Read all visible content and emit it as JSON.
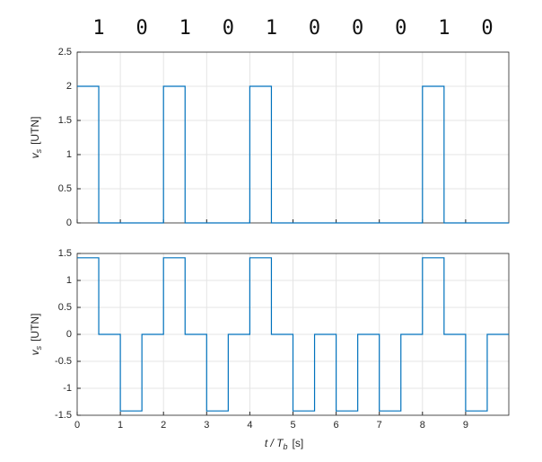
{
  "chart_data": [
    {
      "type": "line",
      "annotations": [
        "1",
        "0",
        "1",
        "0",
        "1",
        "0",
        "0",
        "0",
        "1",
        "0"
      ],
      "x": [
        0,
        0.5,
        0.5,
        2,
        2,
        2.5,
        2.5,
        4,
        4,
        4.5,
        4.5,
        8,
        8,
        8.5,
        8.5,
        10
      ],
      "series": [
        {
          "color": "#0072bd",
          "values": [
            2,
            2,
            0,
            0,
            2,
            2,
            0,
            0,
            2,
            2,
            0,
            0,
            2,
            2,
            0,
            0
          ]
        }
      ],
      "xlim": [
        0,
        10
      ],
      "xticks": [
        0,
        1,
        2,
        3,
        4,
        5,
        6,
        7,
        8,
        9
      ],
      "show_xtick_labels": false,
      "ylim": [
        0,
        2.5
      ],
      "yticks": [
        0,
        0.5,
        1,
        1.5,
        2,
        2.5
      ],
      "grid": true,
      "ylabel": {
        "symbol": "v",
        "subscript": "s",
        "unit": "[UTN]"
      }
    },
    {
      "type": "line",
      "x": [
        0,
        0.5,
        0.5,
        1,
        1,
        1.5,
        1.5,
        2,
        2,
        2.5,
        2.5,
        3,
        3,
        3.5,
        3.5,
        4,
        4,
        4.5,
        4.5,
        5,
        5,
        5.5,
        5.5,
        6,
        6,
        6.5,
        6.5,
        7,
        7,
        7.5,
        7.5,
        8,
        8,
        8.5,
        8.5,
        9,
        9,
        9.5,
        9.5,
        10
      ],
      "series": [
        {
          "color": "#0072bd",
          "values": [
            1.42,
            1.42,
            0,
            0,
            -1.42,
            -1.42,
            0,
            0,
            1.42,
            1.42,
            0,
            0,
            -1.42,
            -1.42,
            0,
            0,
            1.42,
            1.42,
            0,
            0,
            -1.42,
            -1.42,
            0,
            0,
            -1.42,
            -1.42,
            0,
            0,
            -1.42,
            -1.42,
            0,
            0,
            1.42,
            1.42,
            0,
            0,
            -1.42,
            -1.42,
            0,
            0
          ]
        }
      ],
      "xlim": [
        0,
        10
      ],
      "xticks": [
        0,
        1,
        2,
        3,
        4,
        5,
        6,
        7,
        8,
        9
      ],
      "show_xtick_labels": true,
      "ylim": [
        -1.5,
        1.5
      ],
      "yticks": [
        -1.5,
        -1,
        -0.5,
        0,
        0.5,
        1,
        1.5
      ],
      "grid": true,
      "ylabel": {
        "symbol": "v",
        "subscript": "s",
        "unit": "[UTN]"
      },
      "xlabel": {
        "symbol": "t / T",
        "subscript": "b",
        "unit": "[s]"
      }
    }
  ]
}
